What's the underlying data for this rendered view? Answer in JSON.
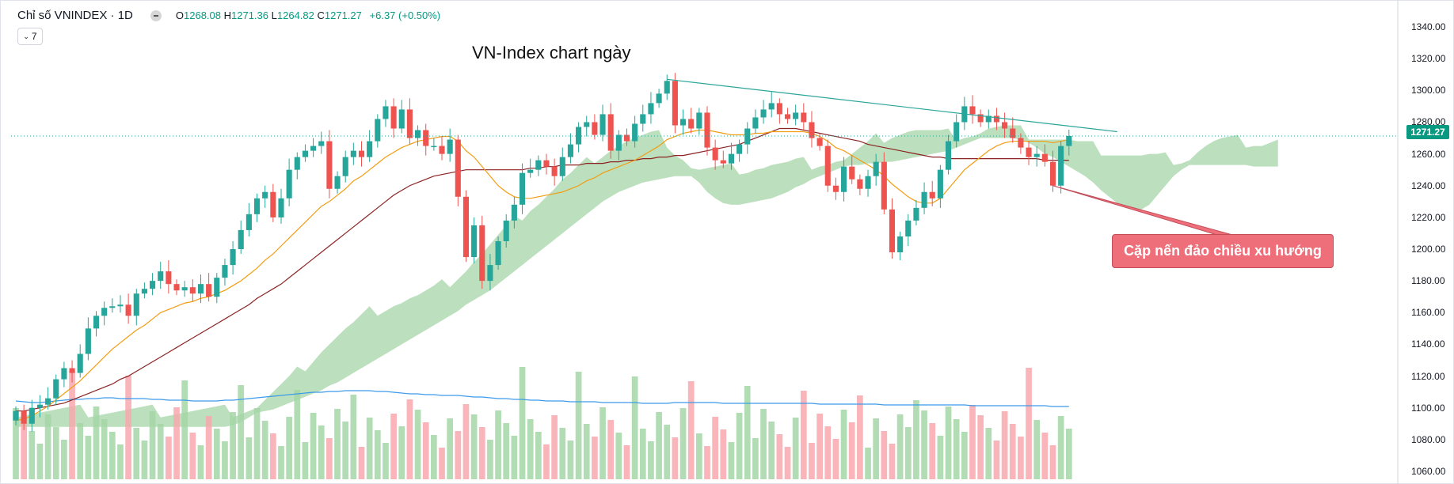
{
  "header": {
    "symbol": "Chỉ số VNINDEX · 1D",
    "open_label": "O",
    "open": "1268.08",
    "high_label": "H",
    "high": "1271.36",
    "low_label": "L",
    "low": "1264.82",
    "close_label": "C",
    "close": "1271.27",
    "change": "+6.37 (+0.50%)",
    "period_value": "7",
    "period_chevron": "chevron-down-icon"
  },
  "caption": "VN-Index chart ngày",
  "callout": "Cặp nến đảo chiều xu hướng",
  "price_tag": "1271.27",
  "colors": {
    "up": "#26a69a",
    "down": "#ef5350",
    "cloud_up": "#a5d6a7",
    "cloud_down": "#f8a8ad",
    "ma20": "#f39c12",
    "ma50": "#8b2323",
    "volume_ma": "#3d9be9",
    "trendline": "#2ba59a"
  },
  "chart_data": {
    "type": "candlestick",
    "title": "VN-Index chart ngày",
    "ylim": [
      1055,
      1350
    ],
    "yticks": [
      "1340.00",
      "1320.00",
      "1300.00",
      "1280.00",
      "1260.00",
      "1240.00",
      "1220.00",
      "1200.00",
      "1180.00",
      "1160.00",
      "1140.00",
      "1120.00",
      "1100.00",
      "1080.00",
      "1060.00"
    ],
    "ytick_values": [
      1340,
      1320,
      1300,
      1280,
      1260,
      1240,
      1220,
      1200,
      1180,
      1160,
      1140,
      1120,
      1100,
      1080,
      1060
    ],
    "last_price": 1271.27,
    "closes": [
      1098,
      1090,
      1100,
      1102,
      1106,
      1118,
      1125,
      1122,
      1134,
      1150,
      1158,
      1163,
      1164,
      1165,
      1158,
      1172,
      1175,
      1180,
      1186,
      1178,
      1174,
      1176,
      1172,
      1178,
      1170,
      1182,
      1190,
      1200,
      1212,
      1222,
      1232,
      1236,
      1220,
      1232,
      1250,
      1258,
      1262,
      1265,
      1268,
      1238,
      1246,
      1258,
      1262,
      1258,
      1268,
      1282,
      1290,
      1276,
      1288,
      1270,
      1275,
      1265,
      1265,
      1260,
      1269,
      1233,
      1195,
      1215,
      1180,
      1190,
      1205,
      1218,
      1228,
      1248,
      1250,
      1256,
      1252,
      1246,
      1258,
      1266,
      1277,
      1280,
      1272,
      1285,
      1262,
      1272,
      1268,
      1279,
      1285,
      1292,
      1298,
      1306,
      1278,
      1282,
      1276,
      1286,
      1264,
      1256,
      1254,
      1260,
      1266,
      1276,
      1283,
      1288,
      1292,
      1285,
      1282,
      1286,
      1280,
      1270,
      1265,
      1240,
      1236,
      1252,
      1244,
      1238,
      1246,
      1255,
      1225,
      1198,
      1208,
      1218,
      1226,
      1236,
      1232,
      1250,
      1268,
      1280,
      1290,
      1285,
      1280,
      1284,
      1280,
      1276,
      1270,
      1264,
      1258,
      1260,
      1255,
      1240,
      1265,
      1271.27
    ],
    "bull_flags_source": "derived from close vs previous close",
    "ma20": [
      1092,
      1093,
      1095,
      1098,
      1101,
      1105,
      1109,
      1113,
      1117,
      1122,
      1127,
      1132,
      1137,
      1141,
      1145,
      1149,
      1152,
      1156,
      1160,
      1162,
      1164,
      1166,
      1167,
      1169,
      1170,
      1172,
      1174,
      1177,
      1180,
      1184,
      1188,
      1193,
      1197,
      1202,
      1207,
      1212,
      1217,
      1222,
      1227,
      1230,
      1234,
      1238,
      1243,
      1246,
      1250,
      1254,
      1258,
      1261,
      1264,
      1266,
      1268,
      1269,
      1270,
      1271,
      1271,
      1268,
      1262,
      1258,
      1252,
      1246,
      1240,
      1236,
      1233,
      1232,
      1232,
      1233,
      1234,
      1235,
      1236,
      1238,
      1240,
      1243,
      1245,
      1248,
      1250,
      1252,
      1254,
      1256,
      1259,
      1262,
      1265,
      1269,
      1271,
      1273,
      1274,
      1275,
      1275,
      1274,
      1273,
      1272,
      1272,
      1272,
      1273,
      1273,
      1274,
      1274,
      1274,
      1274,
      1274,
      1273,
      1271,
      1268,
      1264,
      1262,
      1259,
      1256,
      1253,
      1250,
      1246,
      1241,
      1237,
      1233,
      1230,
      1229,
      1229,
      1232,
      1238,
      1244,
      1250,
      1254,
      1258,
      1262,
      1265,
      1267,
      1268,
      1268,
      1268,
      1268,
      1268,
      1267,
      1268,
      1269
    ],
    "ma50": [
      1098,
      1098,
      1099,
      1100,
      1101,
      1102,
      1103,
      1105,
      1107,
      1109,
      1111,
      1113,
      1115,
      1118,
      1120,
      1123,
      1126,
      1129,
      1132,
      1135,
      1138,
      1141,
      1144,
      1147,
      1150,
      1153,
      1156,
      1159,
      1162,
      1165,
      1169,
      1172,
      1175,
      1178,
      1182,
      1186,
      1190,
      1194,
      1198,
      1202,
      1206,
      1210,
      1214,
      1218,
      1222,
      1226,
      1230,
      1234,
      1237,
      1240,
      1242,
      1244,
      1246,
      1247,
      1248,
      1249,
      1250,
      1250,
      1250,
      1250,
      1250,
      1250,
      1250,
      1250,
      1251,
      1251,
      1252,
      1252,
      1253,
      1253,
      1253,
      1254,
      1254,
      1254,
      1255,
      1255,
      1256,
      1256,
      1257,
      1257,
      1258,
      1258,
      1259,
      1259,
      1260,
      1261,
      1262,
      1263,
      1264,
      1265,
      1266,
      1268,
      1270,
      1272,
      1274,
      1276,
      1276,
      1276,
      1275,
      1274,
      1273,
      1272,
      1271,
      1270,
      1269,
      1268,
      1266,
      1265,
      1264,
      1263,
      1262,
      1261,
      1260,
      1259,
      1258,
      1258,
      1257,
      1257,
      1257,
      1257,
      1257,
      1257,
      1257,
      1257,
      1257,
      1257,
      1257,
      1257,
      1256,
      1256,
      1256,
      1256
    ],
    "cloud_source": "approximate ichimoku cloud drawn by script",
    "volume_ma_level": [
      97,
      96,
      95,
      95,
      96,
      97,
      98,
      99,
      99,
      100,
      100,
      101,
      101,
      100,
      100,
      100,
      100,
      99,
      99,
      98,
      98,
      98,
      97,
      97,
      97,
      97,
      98,
      98,
      99,
      100,
      101,
      102,
      103,
      104,
      105,
      106,
      107,
      108,
      108,
      109,
      109,
      110,
      110,
      110,
      110,
      109,
      109,
      108,
      107,
      106,
      106,
      105,
      105,
      104,
      104,
      104,
      103,
      102,
      102,
      101,
      100,
      100,
      99,
      99,
      98,
      98,
      97,
      97,
      97,
      96,
      96,
      96,
      96,
      95,
      95,
      95,
      95,
      95,
      94,
      94,
      94,
      94,
      95,
      95,
      95,
      95,
      95,
      95,
      94,
      94,
      94,
      94,
      94,
      94,
      94,
      94,
      94,
      94,
      94,
      94,
      93,
      93,
      93,
      93,
      93,
      93,
      93,
      93,
      92,
      92,
      92,
      92,
      92,
      92,
      92,
      92,
      92,
      92,
      92,
      91,
      91,
      91,
      91,
      91,
      91,
      91,
      91,
      91,
      91,
      90,
      90,
      90
    ]
  }
}
